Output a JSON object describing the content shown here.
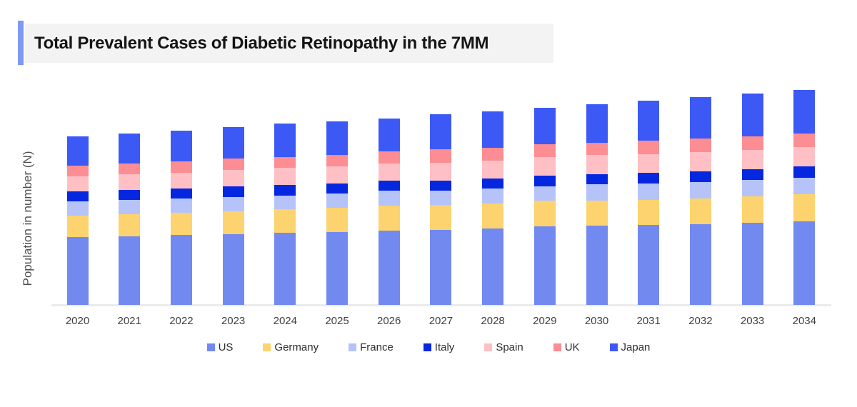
{
  "title": {
    "text": "Total Prevalent Cases of Diabetic Retinopathy in the 7MM"
  },
  "colors": {
    "accent_bar": "#7d99f3",
    "title_background": "#f3f3f3",
    "axis_line": "#ebebeb"
  },
  "chart_data": {
    "type": "bar",
    "stacked": true,
    "title": "Total Prevalent Cases of Diabetic Retinopathy in the 7MM",
    "xlabel": "",
    "ylabel": "Population in number (N)",
    "value_units": "relative height (y axis shows no numeric tick labels)",
    "grid": false,
    "legend_position": "bottom",
    "categories": [
      "2020",
      "2021",
      "2022",
      "2023",
      "2024",
      "2025",
      "2026",
      "2027",
      "2028",
      "2029",
      "2030",
      "2031",
      "2032",
      "2033",
      "2034"
    ],
    "series": [
      {
        "name": "US",
        "color": "#7289f0",
        "values": [
          95,
          96,
          98,
          99,
          101,
          102,
          104,
          105,
          107,
          110,
          111,
          112,
          113,
          115,
          117
        ]
      },
      {
        "name": "Germany",
        "color": "#fcd36e",
        "values": [
          30,
          31,
          31,
          32,
          33,
          34,
          35,
          35,
          35,
          36,
          35,
          35,
          36,
          37,
          38
        ]
      },
      {
        "name": "France",
        "color": "#b5c3f8",
        "values": [
          20,
          20,
          20,
          20,
          19,
          20,
          21,
          20,
          21,
          20,
          23,
          23,
          23,
          23,
          23
        ]
      },
      {
        "name": "Italy",
        "color": "#0627e0",
        "values": [
          14,
          14,
          14,
          15,
          15,
          14,
          14,
          14,
          14,
          15,
          14,
          15,
          15,
          15,
          16
        ]
      },
      {
        "name": "Spain",
        "color": "#fec0c5",
        "values": [
          21,
          22,
          22,
          23,
          24,
          24,
          24,
          25,
          25,
          26,
          27,
          26,
          27,
          27,
          27
        ]
      },
      {
        "name": "UK",
        "color": "#fc8d92",
        "values": [
          15,
          15,
          16,
          16,
          15,
          16,
          17,
          19,
          18,
          18,
          17,
          19,
          19,
          19,
          19
        ]
      },
      {
        "name": "Japan",
        "color": "#3c59f6",
        "values": [
          41,
          42,
          43,
          44,
          47,
          47,
          46,
          49,
          51,
          51,
          54,
          56,
          58,
          60,
          61
        ]
      }
    ],
    "stack_order_bottom_to_top": [
      "US",
      "Germany",
      "France",
      "Italy",
      "Spain",
      "UK",
      "Japan"
    ]
  }
}
